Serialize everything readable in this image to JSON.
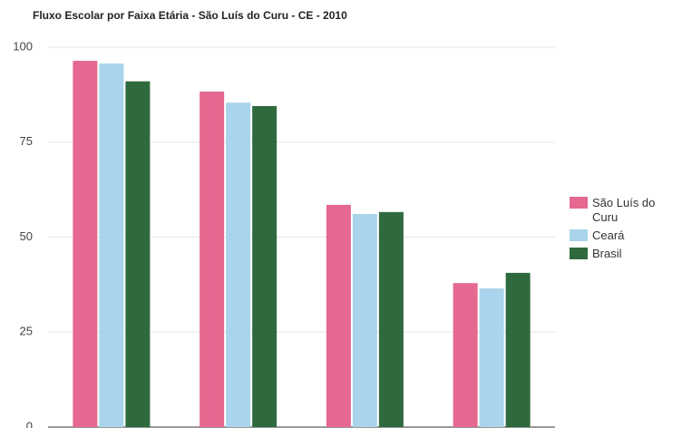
{
  "chart_data": {
    "type": "bar",
    "title": "Fluxo Escolar por Faixa Etária - São Luís do Curu - CE - 2010",
    "categories": [
      null,
      null,
      null,
      null
    ],
    "series": [
      {
        "name": "São Luís do Curu",
        "color": "#e4688f",
        "values": [
          96.4,
          88.3,
          58.5,
          37.9
        ]
      },
      {
        "name": "Ceará",
        "color": "#a9d4eb",
        "values": [
          95.7,
          85.4,
          56.1,
          36.5
        ]
      },
      {
        "name": "Brasil",
        "color": "#2f6a3e",
        "values": [
          91,
          84.5,
          56.6,
          40.6
        ]
      }
    ],
    "ylim": [
      0,
      100
    ],
    "yticks": [
      0,
      25,
      50,
      75,
      100
    ],
    "grid": true,
    "legend": "right"
  }
}
